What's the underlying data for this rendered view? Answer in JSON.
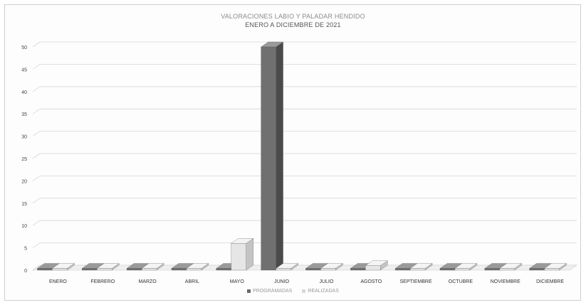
{
  "chart_data": {
    "type": "bar",
    "title": "VALORACIONES LABIO Y PALADAR HENDIDO",
    "subtitle": "ENERO A DICIEMBRE DE 2021",
    "categories": [
      "ENERO",
      "FEBRERO",
      "MARZO",
      "ABRIL",
      "MAYO",
      "JUNIO",
      "JULIO",
      "AGOSTO",
      "SEPTIEMBRE",
      "OCTUBRE",
      "NOVIEMBRE",
      "DICIEMBRE"
    ],
    "series": [
      {
        "name": "PROGRAMADAS",
        "color": "#6b6b6b",
        "values": [
          0,
          0,
          0,
          0,
          0,
          50,
          0,
          0,
          0,
          0,
          0,
          0
        ]
      },
      {
        "name": "REALIZADAS",
        "color": "#d8d8d8",
        "values": [
          0,
          0,
          0,
          0,
          6,
          0,
          0,
          1,
          0,
          0,
          0,
          0
        ]
      }
    ],
    "yticks": [
      "0",
      "5",
      "10",
      "15",
      "20",
      "25",
      "30",
      "35",
      "40",
      "45",
      "50"
    ],
    "ylim": [
      0,
      50
    ],
    "grid": true,
    "legend": "bottom"
  }
}
